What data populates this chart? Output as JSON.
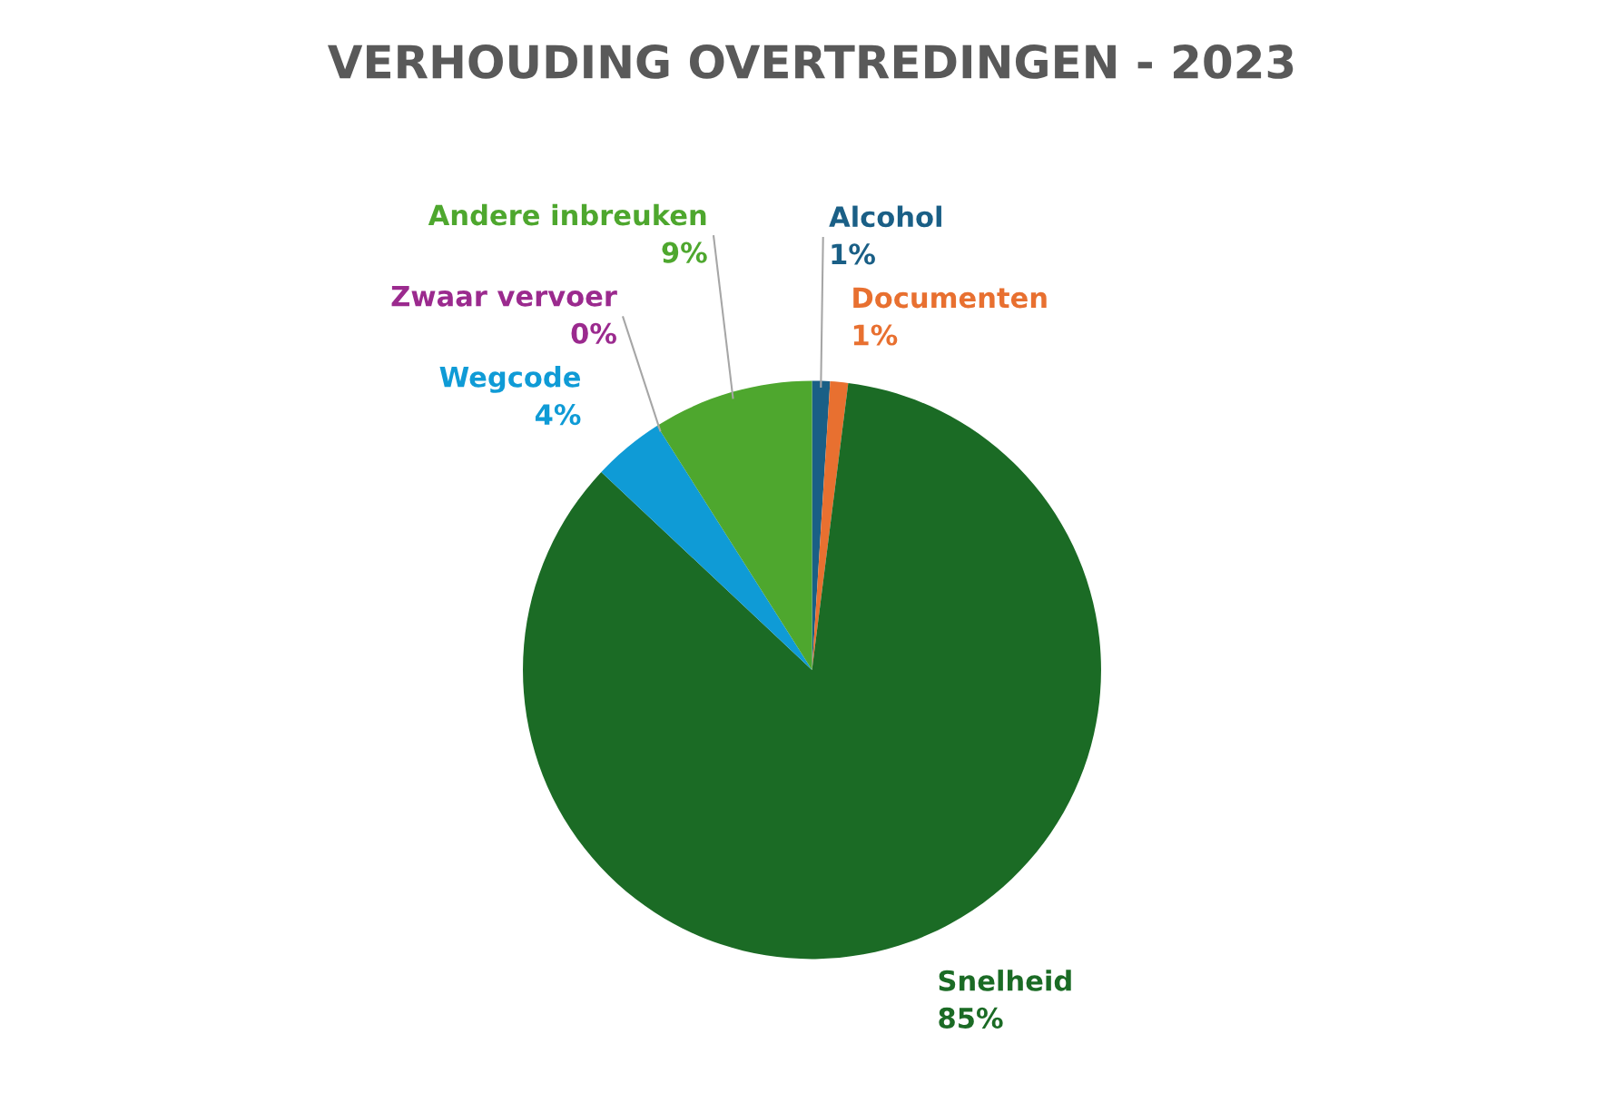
{
  "chart_data": {
    "type": "pie",
    "title": "VERHOUDING OVERTREDINGEN - 2023",
    "categories": [
      "Alcohol",
      "Documenten",
      "Snelheid",
      "Wegcode",
      "Zwaar vervoer",
      "Andere inbreuken"
    ],
    "values": [
      1,
      1,
      85,
      4,
      0,
      9
    ],
    "colors": [
      "#1a5f86",
      "#e87030",
      "#1b6b25",
      "#0f9bd6",
      "#9b2a8e",
      "#4ea72e"
    ],
    "value_labels": [
      "1%",
      "1%",
      "85%",
      "4%",
      "0%",
      "9%"
    ],
    "legend": false
  }
}
